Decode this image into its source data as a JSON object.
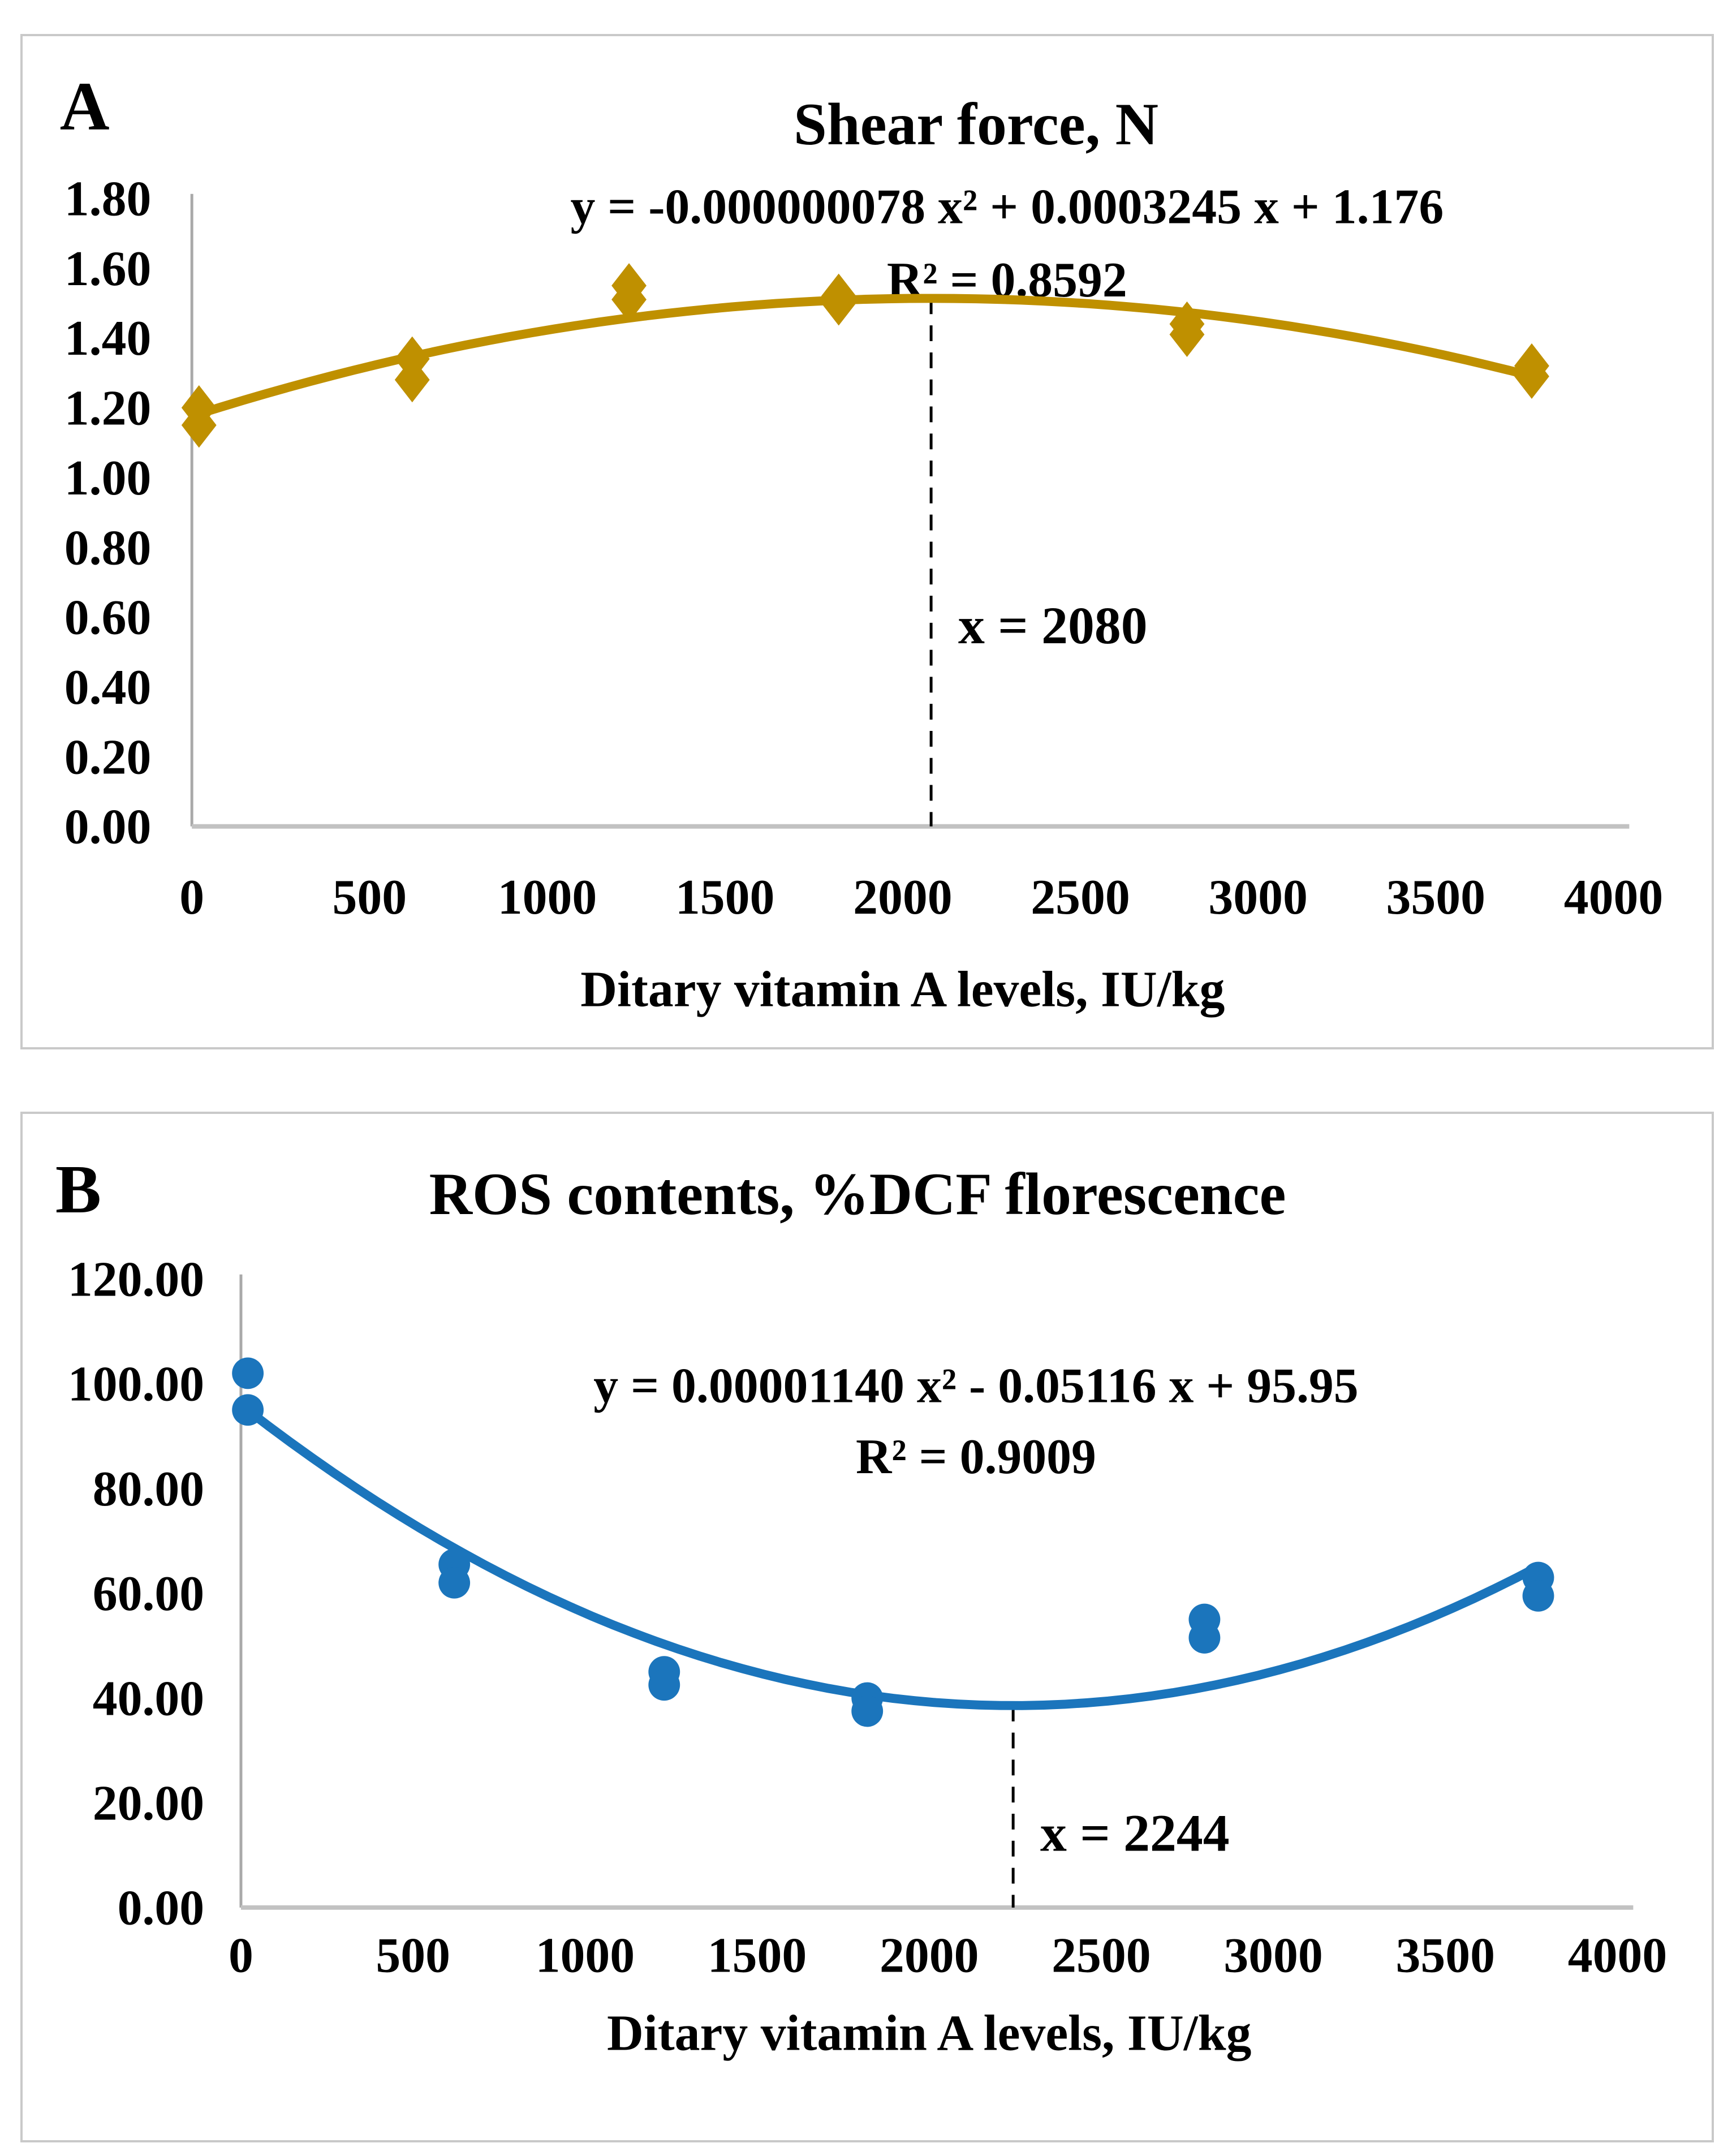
{
  "figure": {
    "background": "#ffffff",
    "panel_border_color": "#c9c9c9",
    "axis_color": "#a9a9a9",
    "text_color": "#000000"
  },
  "chart_data": [
    {
      "type": "scatter",
      "panel_label": "A",
      "title": "Shear force, N",
      "xlabel": "Ditary vitamin A levels, IU/kg",
      "ylabel": "",
      "series_color": "#bf9000",
      "marker": "diamond",
      "xlim": [
        0,
        4000
      ],
      "ylim": [
        0,
        1.8
      ],
      "x_ticks": [
        0,
        500,
        1000,
        1500,
        2000,
        2500,
        3000,
        3500,
        4000
      ],
      "y_ticks": [
        "1.80",
        "1.60",
        "1.40",
        "1.20",
        "1.00",
        "0.80",
        "0.60",
        "0.40",
        "0.20",
        "0.00"
      ],
      "grid": false,
      "legend": "none",
      "points": [
        [
          20,
          1.2
        ],
        [
          20,
          1.15
        ],
        [
          620,
          1.34
        ],
        [
          620,
          1.28
        ],
        [
          1230,
          1.55
        ],
        [
          1230,
          1.51
        ],
        [
          1820,
          1.52
        ],
        [
          1820,
          1.5
        ],
        [
          2800,
          1.44
        ],
        [
          2800,
          1.41
        ],
        [
          3770,
          1.32
        ],
        [
          3770,
          1.29
        ]
      ],
      "trendline": {
        "type": "quadratic",
        "a": -7.8e-08,
        "b": 0.0003245,
        "c": 1.176,
        "x_start": 20,
        "x_end": 3770
      },
      "equation": "y = -0.000000078 x² + 0.0003245 x + 1.176",
      "r_squared": "R² = 0.8592",
      "annotation": {
        "vline_x": 2080,
        "label": "x = 2080"
      }
    },
    {
      "type": "scatter",
      "panel_label": "B",
      "title": "ROS contents, %DCF florescence",
      "xlabel": "Ditary vitamin A levels, IU/kg",
      "ylabel": "",
      "series_color": "#1b75bc",
      "marker": "circle",
      "xlim": [
        0,
        4000
      ],
      "ylim": [
        0,
        120
      ],
      "x_ticks": [
        0,
        500,
        1000,
        1500,
        2000,
        2500,
        3000,
        3500,
        4000
      ],
      "y_ticks": [
        "120.00",
        "100.00",
        "80.00",
        "60.00",
        "40.00",
        "20.00",
        "0.00"
      ],
      "grid": false,
      "legend": "none",
      "points": [
        [
          20,
          102
        ],
        [
          20,
          95
        ],
        [
          620,
          65.5
        ],
        [
          620,
          62
        ],
        [
          1230,
          45
        ],
        [
          1230,
          42.5
        ],
        [
          1820,
          40
        ],
        [
          1820,
          37.5
        ],
        [
          2800,
          55
        ],
        [
          2800,
          51.5
        ],
        [
          3770,
          63
        ],
        [
          3770,
          59.5
        ]
      ],
      "trendline": {
        "type": "quadratic",
        "a": 1.14e-05,
        "b": -0.05116,
        "c": 95.95,
        "x_start": 20,
        "x_end": 3770
      },
      "equation": "y = 0.00001140 x² - 0.05116 x + 95.95",
      "r_squared": "R² = 0.9009",
      "annotation": {
        "vline_x": 2244,
        "label": "x = 2244"
      }
    }
  ]
}
